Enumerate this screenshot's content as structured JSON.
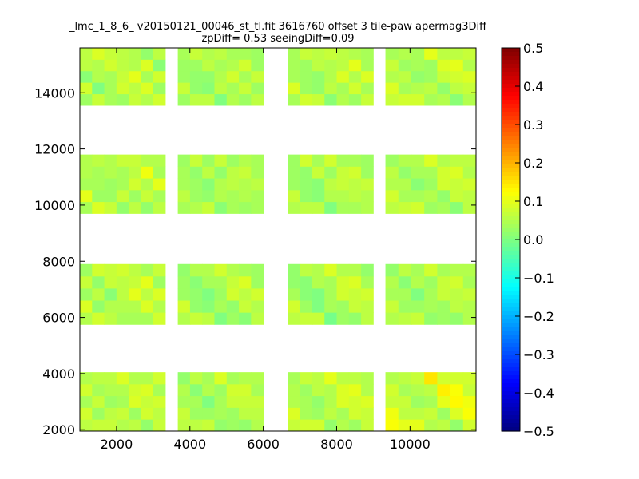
{
  "chart_data": {
    "type": "heatmap",
    "title": "_lmc_1_8_6_ v20150121_00046_st_tl.fit 3616760 offset 3 tile-paw apermag3Diff",
    "subtitle": "zpDiff= 0.53 seeingDiff=0.09",
    "xlabel": "",
    "ylabel": "",
    "xlim": [
      1000,
      11800
    ],
    "ylim": [
      1950,
      15600
    ],
    "x_ticks": [
      "2000",
      "4000",
      "6000",
      "8000",
      "10000"
    ],
    "x_tick_values": [
      2000,
      4000,
      6000,
      8000,
      10000
    ],
    "y_ticks": [
      "2000",
      "4000",
      "6000",
      "8000",
      "10000",
      "12000",
      "14000"
    ],
    "y_tick_values": [
      2000,
      4000,
      6000,
      8000,
      10000,
      12000,
      14000
    ],
    "colorbar": {
      "colormap": "jet",
      "min": -0.5,
      "max": 0.5,
      "ticks": [
        "0.5",
        "0.4",
        "0.3",
        "0.2",
        "0.1",
        "0.0",
        "−0.1",
        "−0.2",
        "−0.3",
        "−0.4",
        "−0.5"
      ],
      "tick_values": [
        0.5,
        0.4,
        0.3,
        0.2,
        0.1,
        0.0,
        -0.1,
        -0.2,
        -0.3,
        -0.4,
        -0.5
      ]
    },
    "cell_width": 333,
    "cell_height": 400,
    "detector_columns": [
      {
        "x": [
          1000,
          3330
        ],
        "row_count": 5,
        "values": [
          [
            0.08,
            0.07,
            0.05,
            0.06,
            0.05,
            0.04,
            0.07
          ],
          [
            0.07,
            0.08,
            0.04,
            0.05,
            0.03,
            0.06,
            0.08
          ],
          [
            0.06,
            0.09,
            0.05,
            0.03,
            0.05,
            0.04,
            0.06
          ],
          [
            0.05,
            0.07,
            0.02,
            0.04,
            0.06,
            0.07,
            0.08
          ]
        ]
      },
      {
        "x": [
          3670,
          6000
        ],
        "row_count": 5,
        "values": [
          [
            0.08,
            0.06,
            0.05,
            0.03,
            0.02,
            0.04,
            0.05
          ],
          [
            0.07,
            0.07,
            0.04,
            0.01,
            0.02,
            0.03,
            0.06
          ],
          [
            0.06,
            0.05,
            0.05,
            0.02,
            0.03,
            0.05,
            0.04
          ],
          [
            0.05,
            0.06,
            0.04,
            0.01,
            0.04,
            0.05,
            0.06
          ]
        ]
      },
      {
        "x": [
          6670,
          9000
        ],
        "row_count": 5,
        "values": [
          [
            0.09,
            0.08,
            0.06,
            0.03,
            0.04,
            0.05,
            0.07
          ],
          [
            0.08,
            0.07,
            0.05,
            0.0,
            0.02,
            0.04,
            0.06
          ],
          [
            0.07,
            0.06,
            0.04,
            0.01,
            0.03,
            0.06,
            0.05
          ],
          [
            0.06,
            0.08,
            0.05,
            0.02,
            0.04,
            0.05,
            0.07
          ]
        ]
      },
      {
        "x": [
          9330,
          11800
        ],
        "row_count": 5,
        "values": [
          [
            0.14,
            0.1,
            0.08,
            0.06,
            0.05,
            0.04,
            0.08
          ],
          [
            0.07,
            0.06,
            0.05,
            0.03,
            0.02,
            0.04,
            0.05
          ],
          [
            0.08,
            0.07,
            0.06,
            0.04,
            0.03,
            0.03,
            0.06
          ],
          [
            0.09,
            0.08,
            0.06,
            0.05,
            0.04,
            0.03,
            0.05
          ]
        ]
      }
    ],
    "detector_rows_y": [
      [
        1950,
        4050
      ],
      [
        5750,
        7900
      ],
      [
        9700,
        11800
      ],
      [
        13550,
        15600
      ]
    ]
  }
}
